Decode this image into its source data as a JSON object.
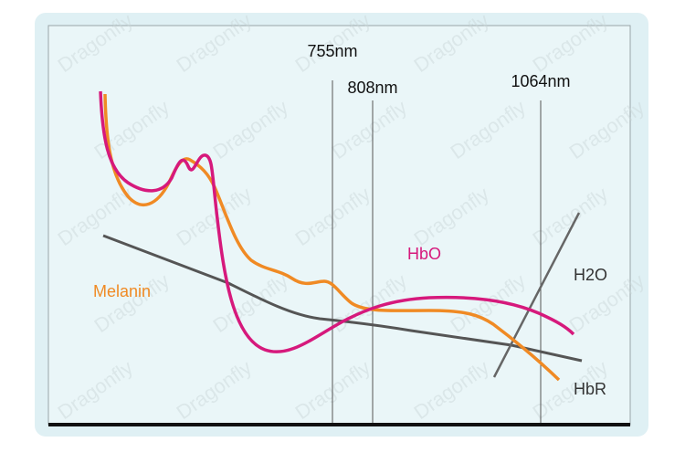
{
  "wavelengths": [
    "755nm",
    "808nm",
    "1064nm"
  ],
  "curves": [
    "Melanin",
    "HbO",
    "H2O",
    "HbR"
  ],
  "watermark": "Dragonfly"
}
